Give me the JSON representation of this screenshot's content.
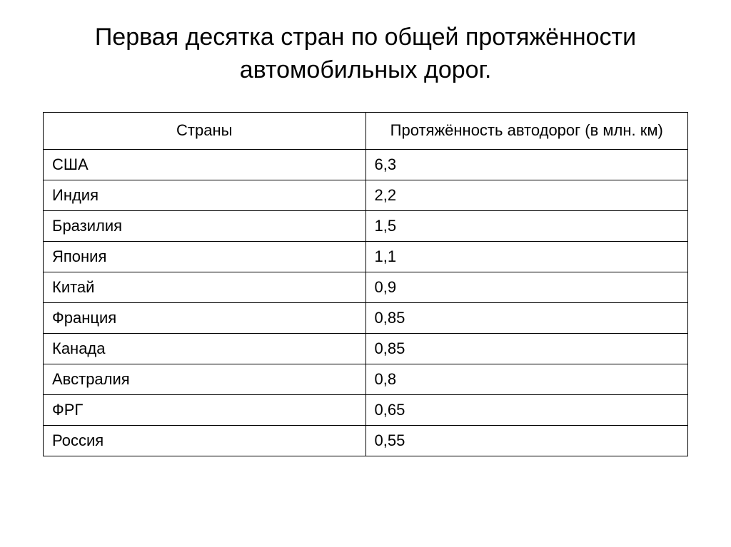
{
  "title": "Первая десятка стран по общей протяжённости автомобильных дорог.",
  "table": {
    "columns": [
      "Страны",
      "Протяжённость автодорог (в млн. км)"
    ],
    "rows": [
      {
        "country": "США",
        "value": "6,3"
      },
      {
        "country": "Индия",
        "value": "2,2"
      },
      {
        "country": "Бразилия",
        "value": "1,5"
      },
      {
        "country": "Япония",
        "value": "1,1"
      },
      {
        "country": "Китай",
        "value": "0,9"
      },
      {
        "country": "Франция",
        "value": "0,85"
      },
      {
        "country": "Канада",
        "value": "0,85"
      },
      {
        "country": "Австралия",
        "value": "0,8"
      },
      {
        "country": "ФРГ",
        "value": "0,65"
      },
      {
        "country": "Россия",
        "value": "0,55"
      }
    ],
    "border_color": "#000000",
    "background_color": "#ffffff",
    "header_fontsize": 22,
    "cell_fontsize": 22,
    "column_widths": [
      "50%",
      "50%"
    ]
  },
  "styling": {
    "title_fontsize": 34,
    "title_color": "#000000",
    "body_text_color": "#000000",
    "page_background": "#ffffff"
  }
}
